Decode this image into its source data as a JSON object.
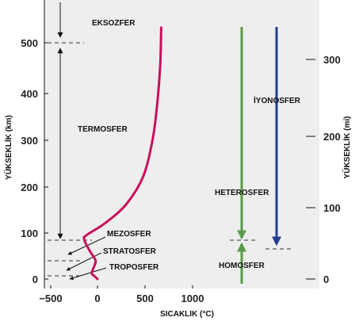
{
  "chart_data": {
    "type": "line",
    "xlabel": "SICAKLIK (°C)",
    "ylabel": "YÜKSEKLİK (km)",
    "y2label": "YÜKSEKLİK (mi)",
    "x_ticks": [
      "−500",
      "0",
      "500",
      "1000"
    ],
    "y_ticks": [
      "0",
      "100",
      "200",
      "300",
      "400",
      "500"
    ],
    "y2_ticks": [
      "0",
      "100",
      "200",
      "300"
    ],
    "temperature_profile": {
      "x": [
        0,
        -30,
        -60,
        -40,
        -20,
        -80,
        -140,
        -110,
        80,
        300,
        480,
        580,
        630,
        660,
        670
      ],
      "y": [
        0,
        6,
        12,
        25,
        40,
        60,
        85,
        95,
        120,
        160,
        220,
        300,
        380,
        460,
        540
      ]
    },
    "layers_left": [
      "EKSOZFER",
      "TERMOSFER",
      "MEZOSFER",
      "STRATOSFER",
      "TROPOSFER"
    ],
    "layers_right": [
      "İYONOSFER",
      "HETEROSFER",
      "HOMOSFER"
    ],
    "colors": {
      "temperature_curve": "#c8105c",
      "composition_arrow": "#5a9a4a",
      "ionosphere_arrow": "#233d8f",
      "plot_bg": "#eeeeee"
    }
  }
}
